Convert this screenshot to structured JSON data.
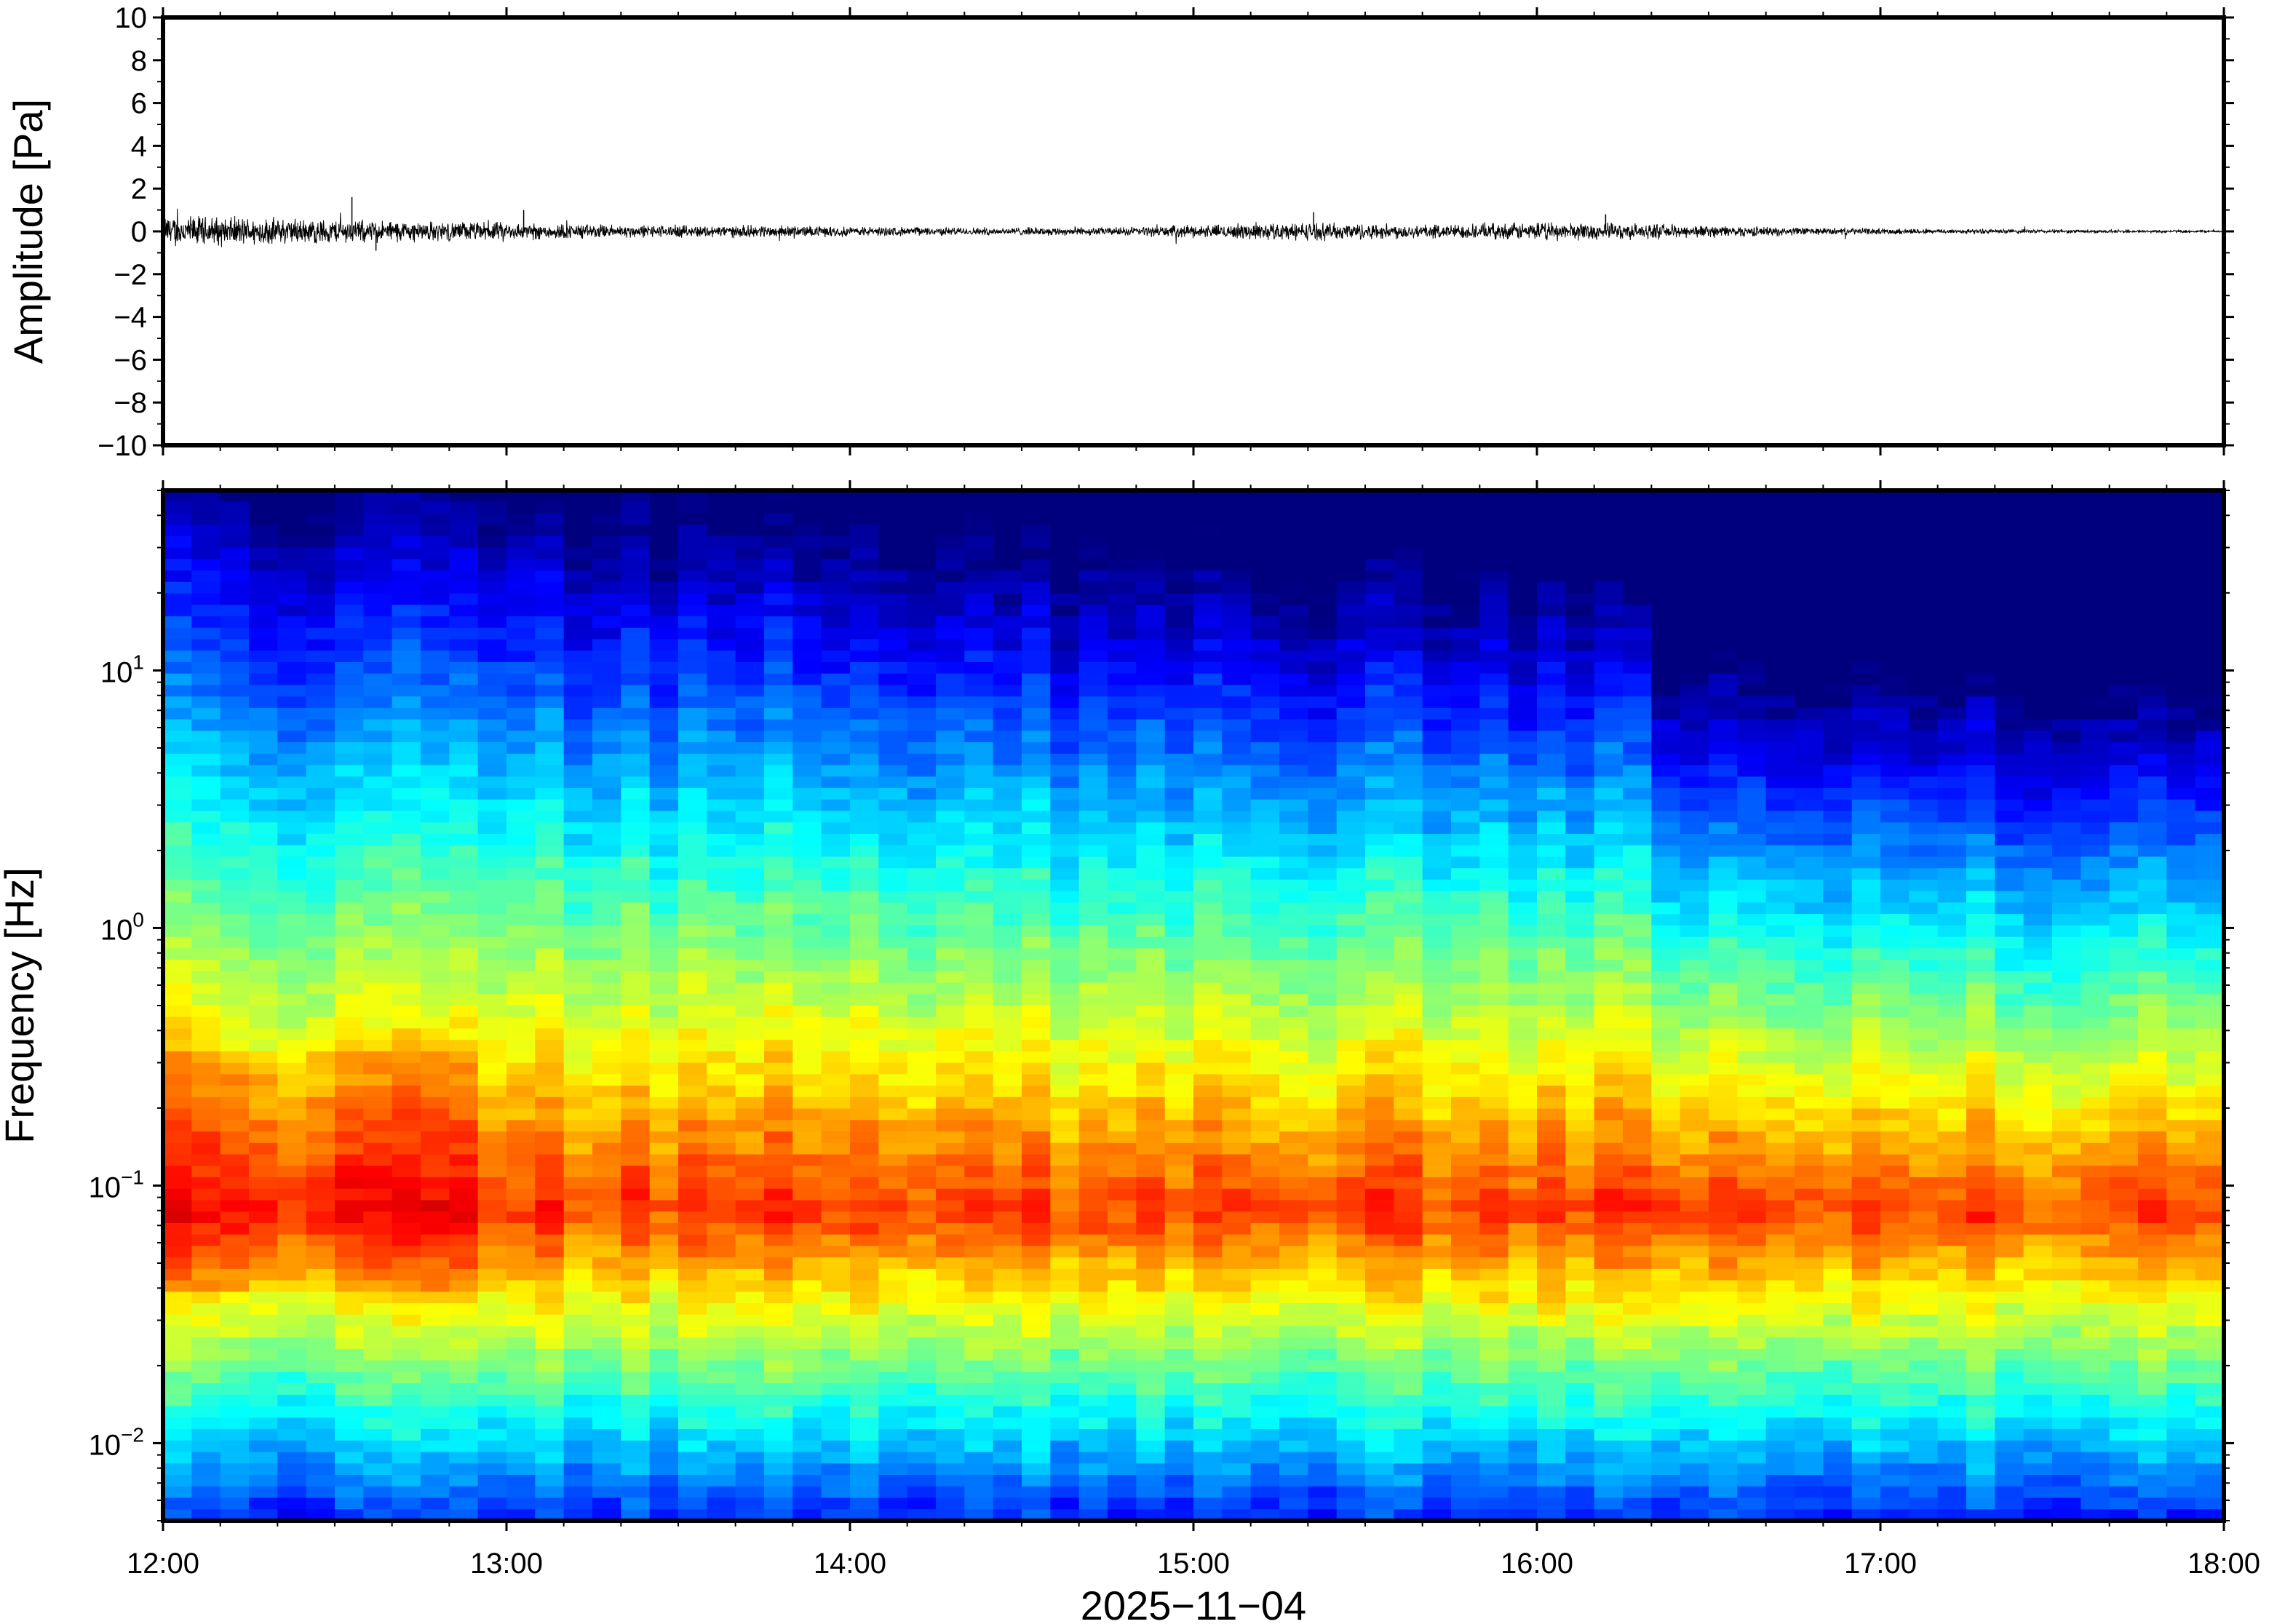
{
  "chart_data": [
    {
      "type": "line",
      "panel": "waveform",
      "ylabel": "Amplitude [Pa]",
      "ylim": [
        -10,
        10
      ],
      "yticks": [
        10,
        8,
        6,
        4,
        2,
        0,
        -2,
        -4,
        -6,
        -8,
        -10
      ],
      "ytick_labels": [
        "10",
        "8",
        "6",
        "4",
        "2",
        "0",
        "−2",
        "−4",
        "−6",
        "−8",
        "−10"
      ],
      "xlim": [
        "12:00",
        "18:00"
      ],
      "grid": false,
      "series": [
        {
          "x": [
            "12:00",
            "12:15",
            "12:30",
            "12:45",
            "13:00",
            "13:15",
            "13:30",
            "13:45",
            "14:00",
            "14:15",
            "14:30",
            "14:45",
            "15:00",
            "15:15",
            "15:30",
            "15:45",
            "16:00",
            "16:15",
            "16:30",
            "16:45",
            "17:00",
            "17:15",
            "17:30",
            "17:45",
            "18:00"
          ],
          "envelope": [
            0.8,
            0.7,
            0.6,
            0.5,
            0.45,
            0.35,
            0.3,
            0.3,
            0.25,
            0.2,
            0.2,
            0.2,
            0.3,
            0.45,
            0.4,
            0.35,
            0.45,
            0.4,
            0.3,
            0.2,
            0.15,
            0.12,
            0.1,
            0.08,
            0.06
          ],
          "peak_max": 1.6,
          "peak_min": -0.9,
          "color": "#000000"
        }
      ]
    },
    {
      "type": "heatmap",
      "panel": "spectrogram",
      "ylabel": "Frequency [Hz]",
      "yscale": "log",
      "ylim_hz": [
        0.005,
        50
      ],
      "ytick_labels": [
        {
          "base": "10",
          "exp": "1"
        },
        {
          "base": "10",
          "exp": "0"
        },
        {
          "base": "10",
          "exp": "−1"
        },
        {
          "base": "10",
          "exp": "−2"
        }
      ],
      "xlabel": "2025−11−04",
      "xticks": [
        "12:00",
        "13:00",
        "14:00",
        "15:00",
        "16:00",
        "17:00",
        "18:00"
      ],
      "colormap": [
        "#00007f",
        "#0000ff",
        "#007fff",
        "#00ffff",
        "#7fff7f",
        "#ffff00",
        "#ff7f00",
        "#ff0000",
        "#7f0000"
      ],
      "grid": false,
      "relative_power_peak_freq_hz": 0.08
    }
  ]
}
